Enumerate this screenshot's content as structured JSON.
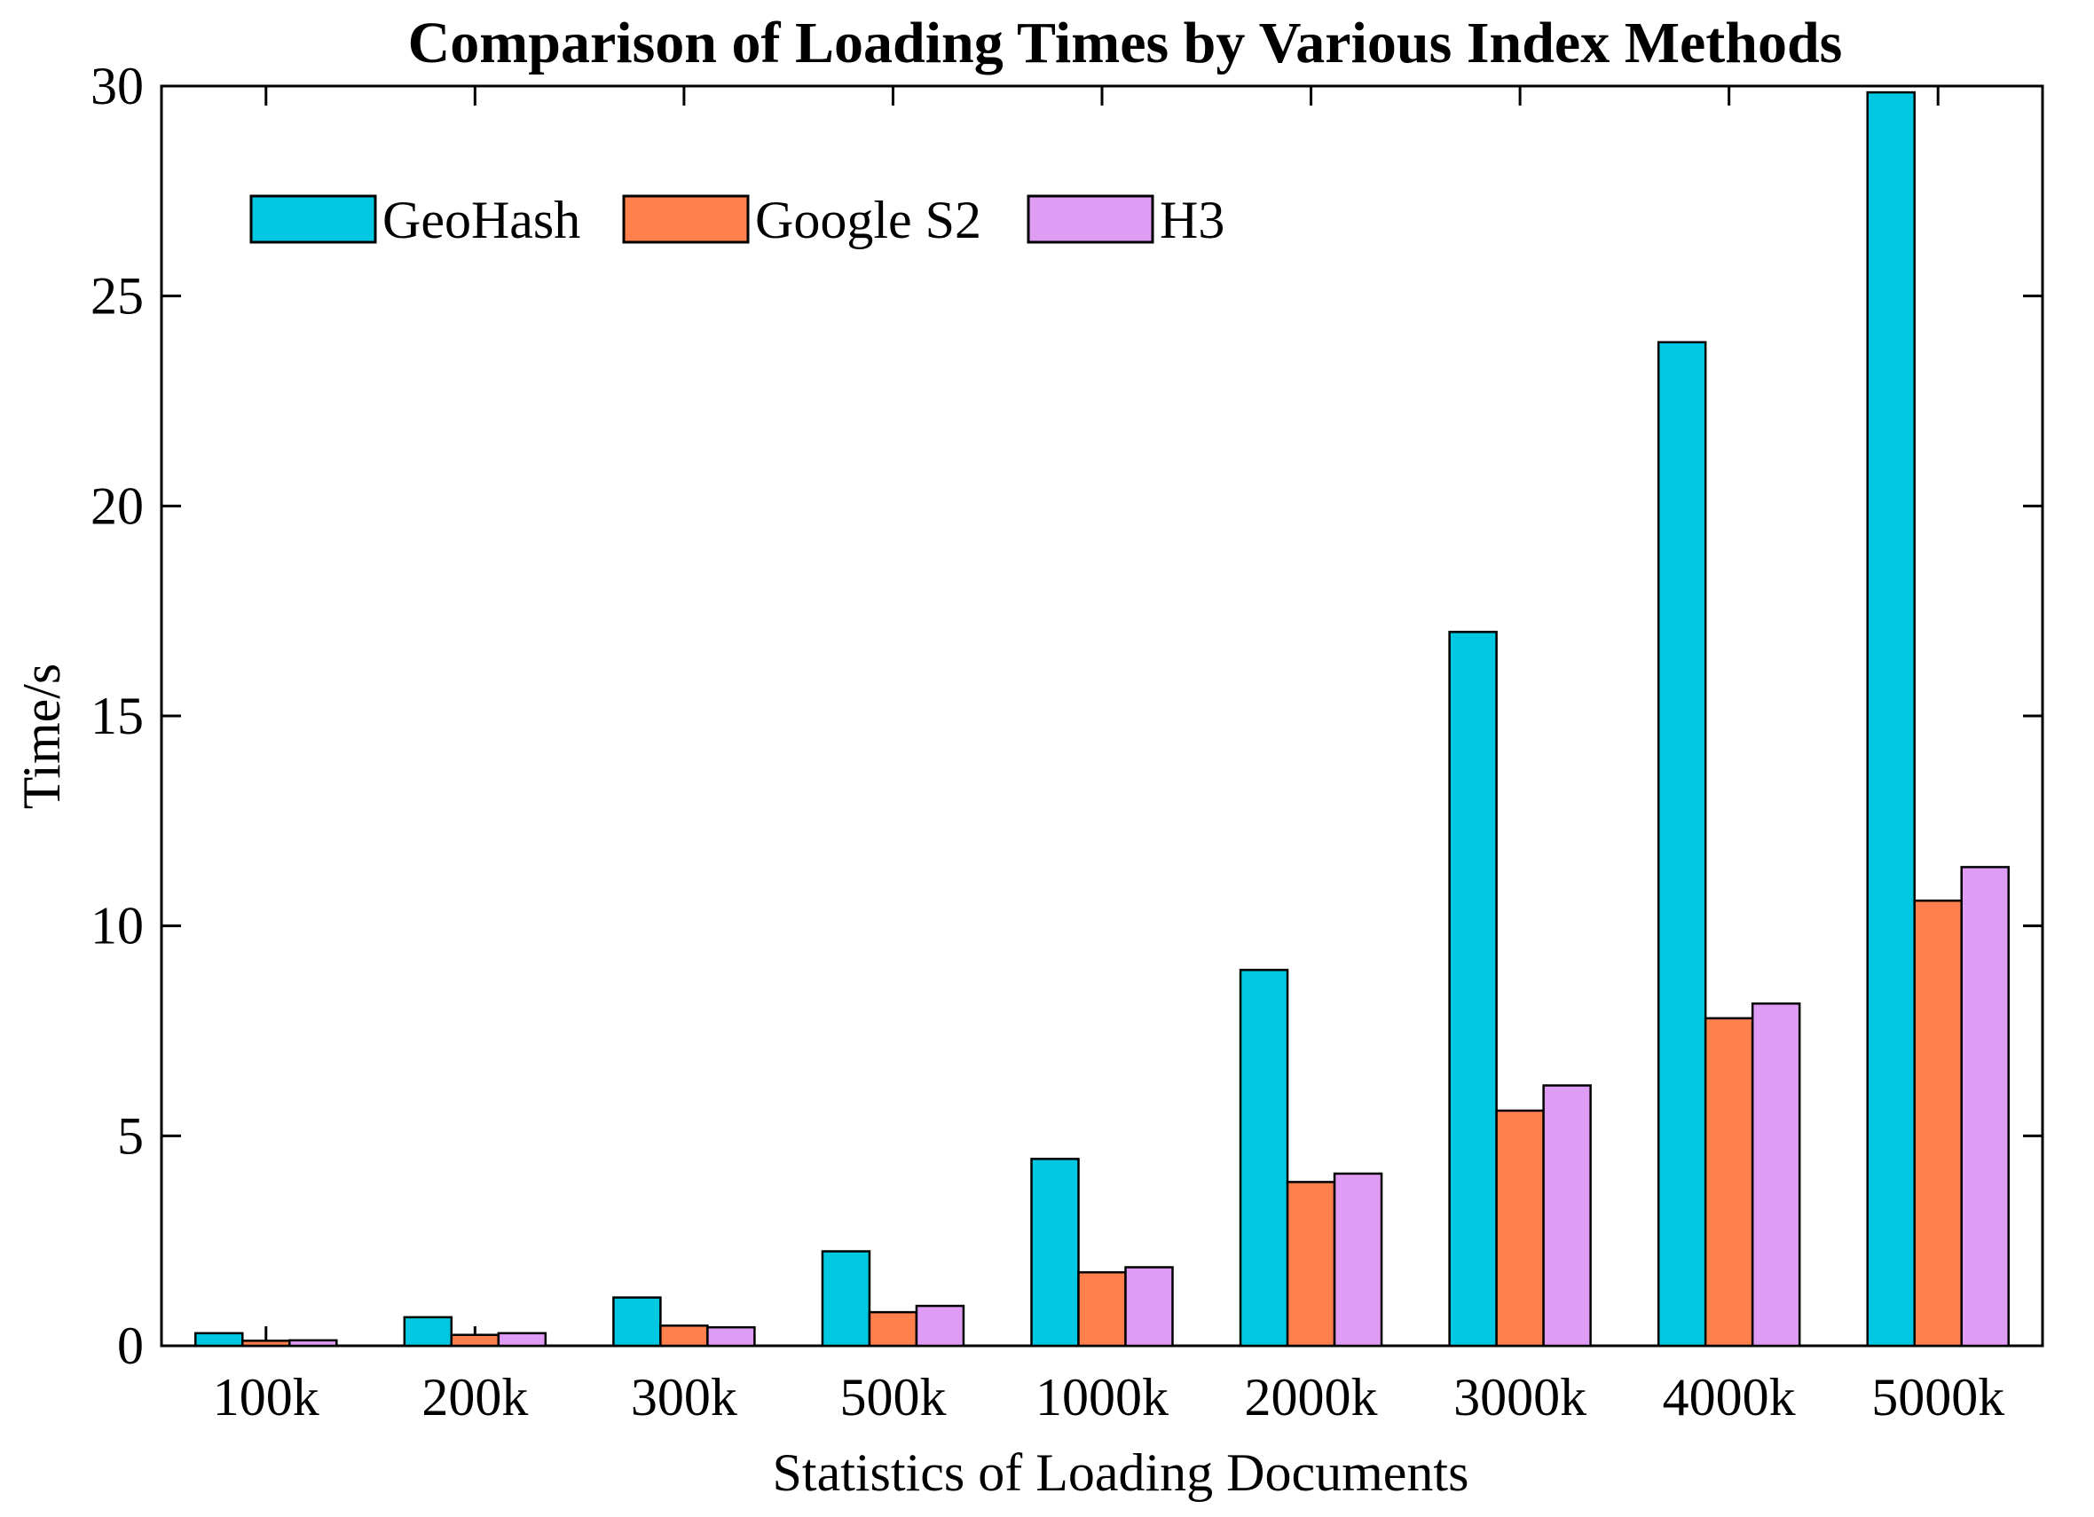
{
  "chart_data": {
    "type": "bar",
    "title": "Comparison of Loading Times by Various Index Methods",
    "xlabel": "Statistics of Loading Documents",
    "ylabel": "Time/s",
    "ylim": [
      0,
      30
    ],
    "yticks": [
      0,
      5,
      10,
      15,
      20,
      25,
      30
    ],
    "categories": [
      "100k",
      "200k",
      "300k",
      "500k",
      "1000k",
      "2000k",
      "3000k",
      "4000k",
      "5000k"
    ],
    "series": [
      {
        "name": "GeoHash",
        "color": "#00C8E3",
        "values": [
          0.3,
          0.68,
          1.15,
          2.25,
          4.45,
          8.95,
          17.0,
          23.9,
          29.85
        ]
      },
      {
        "name": "Google S2",
        "color": "#FF7F4D",
        "values": [
          0.12,
          0.26,
          0.48,
          0.8,
          1.75,
          3.9,
          5.6,
          7.8,
          10.6
        ]
      },
      {
        "name": "H3",
        "color": "#DF9CF5",
        "values": [
          0.13,
          0.3,
          0.44,
          0.95,
          1.87,
          4.1,
          6.2,
          8.15,
          11.4
        ]
      }
    ],
    "grid": false,
    "legend": "top-left"
  }
}
